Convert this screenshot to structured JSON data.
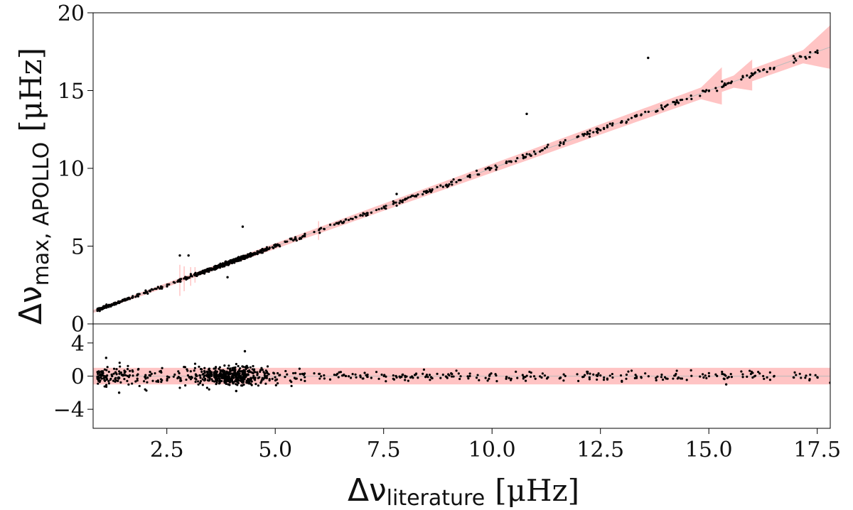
{
  "chart_data": [
    {
      "type": "scatter",
      "panel": "main",
      "ylabel_main": "Δν",
      "ylabel_sub": "max, APOLLO",
      "ylabel_unit": "[μHz]",
      "xlim": [
        0.8,
        17.8
      ],
      "ylim": [
        0,
        20
      ],
      "yticks": [
        0,
        5,
        10,
        15,
        20
      ],
      "ytick_labels": [
        "0",
        "5",
        "10",
        "15",
        "20"
      ],
      "grid": false,
      "reference_line": {
        "slope": 1,
        "intercept": 0
      },
      "band_color": "#ffc4c4",
      "point_color": "#000000",
      "outliers": [
        [
          4.25,
          6.25
        ],
        [
          2.8,
          4.4
        ],
        [
          3.0,
          4.4
        ],
        [
          3.9,
          3.0
        ],
        [
          7.8,
          8.35
        ],
        [
          10.8,
          13.5
        ],
        [
          13.6,
          17.1
        ]
      ],
      "sampling": {
        "dense_center": 4.0,
        "dense_fraction": 0.45,
        "n_points": 900,
        "scatter_main": 0.08,
        "seed": 7
      }
    },
    {
      "type": "scatter",
      "panel": "residual",
      "xlabel_main": "Δν",
      "xlabel_sub": "literature",
      "xlabel_unit": "[μHz]",
      "xlim": [
        0.8,
        17.8
      ],
      "ylim": [
        -6.3,
        6.3
      ],
      "yticks": [
        -4,
        0,
        4
      ],
      "ytick_labels": [
        "−4",
        "0",
        "4"
      ],
      "xticks": [
        2.5,
        5.0,
        7.5,
        10.0,
        12.5,
        15.0,
        17.5
      ],
      "xtick_labels": [
        "2.5",
        "5.0",
        "7.5",
        "10.0",
        "12.5",
        "15.0",
        "17.5"
      ],
      "band": [
        -1.0,
        1.0
      ],
      "band_color": "#ffc4c4",
      "point_color": "#000000",
      "outliers": [
        [
          1.1,
          2.2
        ],
        [
          1.4,
          -2.0
        ],
        [
          4.3,
          3.0
        ],
        [
          4.1,
          -1.8
        ],
        [
          15.4,
          -1.0
        ],
        [
          17.8,
          -0.8
        ]
      ],
      "sampling": {
        "scatter_residual": 0.55
      }
    }
  ]
}
